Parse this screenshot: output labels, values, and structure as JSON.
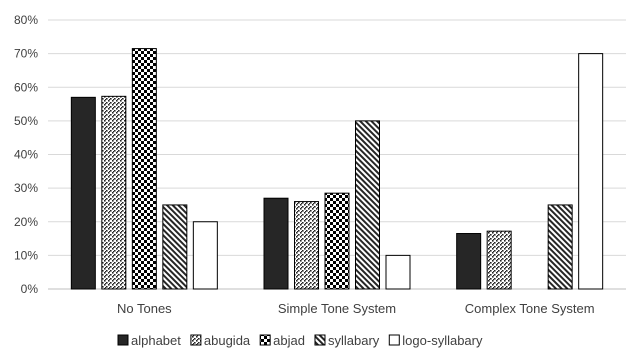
{
  "chart_data": {
    "type": "bar",
    "title": "",
    "xlabel": "",
    "ylabel": "",
    "ylim": [
      0,
      80
    ],
    "y_ticks": [
      "0%",
      "10%",
      "20%",
      "30%",
      "40%",
      "50%",
      "60%",
      "70%",
      "80%"
    ],
    "grid": true,
    "legend_position": "bottom",
    "categories": [
      "No Tones",
      "Simple Tone System",
      "Complex Tone System"
    ],
    "series": [
      {
        "name": "alphabet",
        "pattern": "solid",
        "color": "#262626",
        "values": [
          57,
          27,
          16.5
        ]
      },
      {
        "name": "abugida",
        "pattern": "diagonal-dots",
        "color": "#262626",
        "values": [
          57.3,
          26,
          17.2
        ]
      },
      {
        "name": "abjad",
        "pattern": "checkerboard",
        "color": "#000000",
        "values": [
          71.5,
          28.5,
          null
        ]
      },
      {
        "name": "syllabary",
        "pattern": "diagonal-stripes",
        "color": "#262626",
        "values": [
          25,
          50,
          25
        ]
      },
      {
        "name": "logo-syllabary",
        "pattern": "none",
        "color": "#ffffff",
        "values": [
          20,
          10,
          70
        ]
      }
    ]
  }
}
